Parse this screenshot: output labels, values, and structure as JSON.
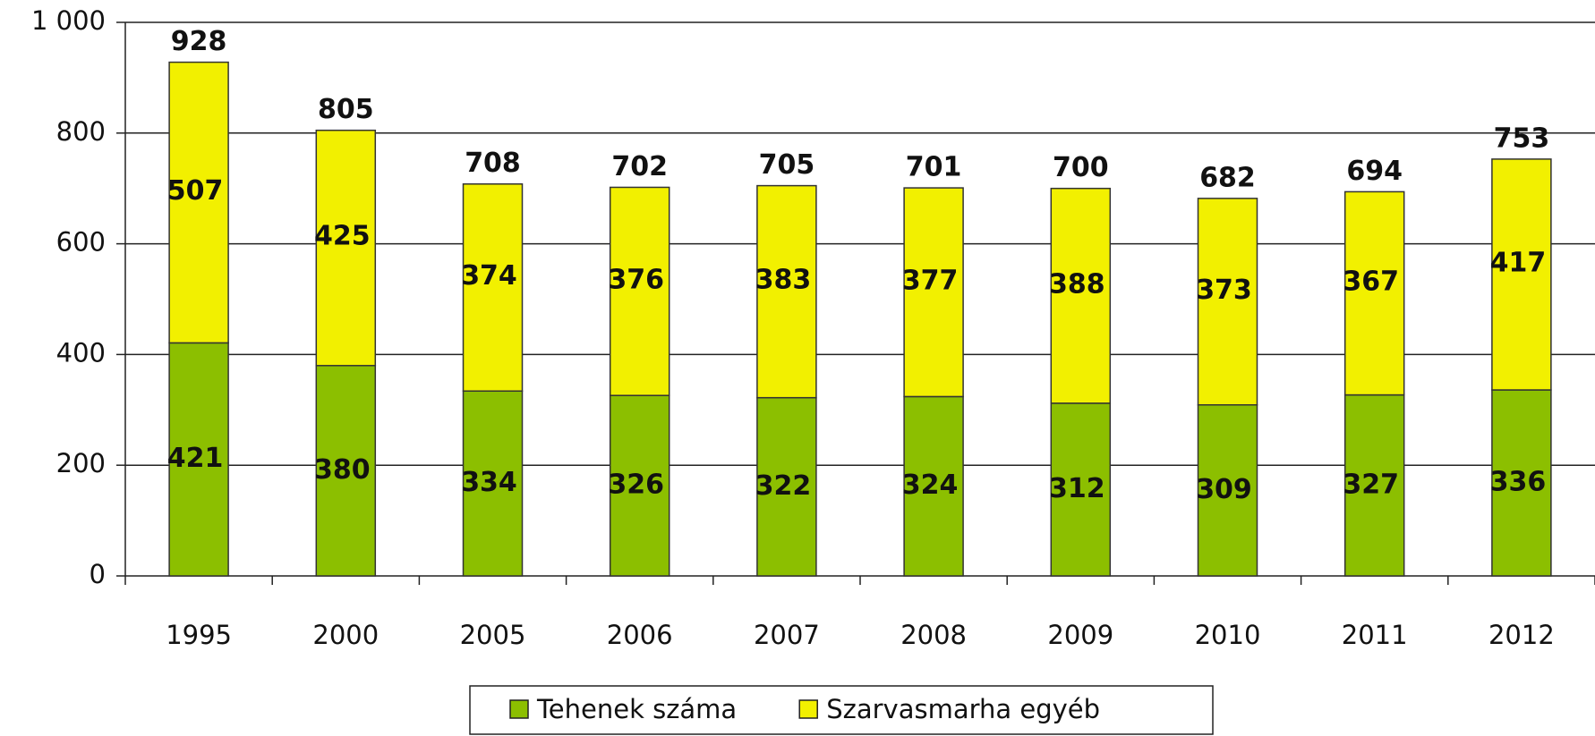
{
  "chart_data": {
    "type": "bar",
    "stacked": true,
    "categories": [
      "1995",
      "2000",
      "2005",
      "2006",
      "2007",
      "2008",
      "2009",
      "2010",
      "2011",
      "2012"
    ],
    "series": [
      {
        "name": "Tehenek száma",
        "color": "#8cbf00",
        "values": [
          421,
          380,
          334,
          326,
          322,
          324,
          312,
          309,
          327,
          336
        ]
      },
      {
        "name": "Szarvasmarha egyéb",
        "color": "#f2f000",
        "values": [
          507,
          425,
          374,
          376,
          383,
          377,
          388,
          373,
          367,
          417
        ]
      }
    ],
    "totals": [
      928,
      805,
      708,
      702,
      705,
      701,
      700,
      682,
      694,
      753
    ],
    "ylim": [
      0,
      1000
    ],
    "yticks": [
      0,
      200,
      400,
      600,
      800,
      {
        "value": 1000,
        "label": "1 000"
      }
    ],
    "grid": true,
    "legend": "bottom"
  }
}
